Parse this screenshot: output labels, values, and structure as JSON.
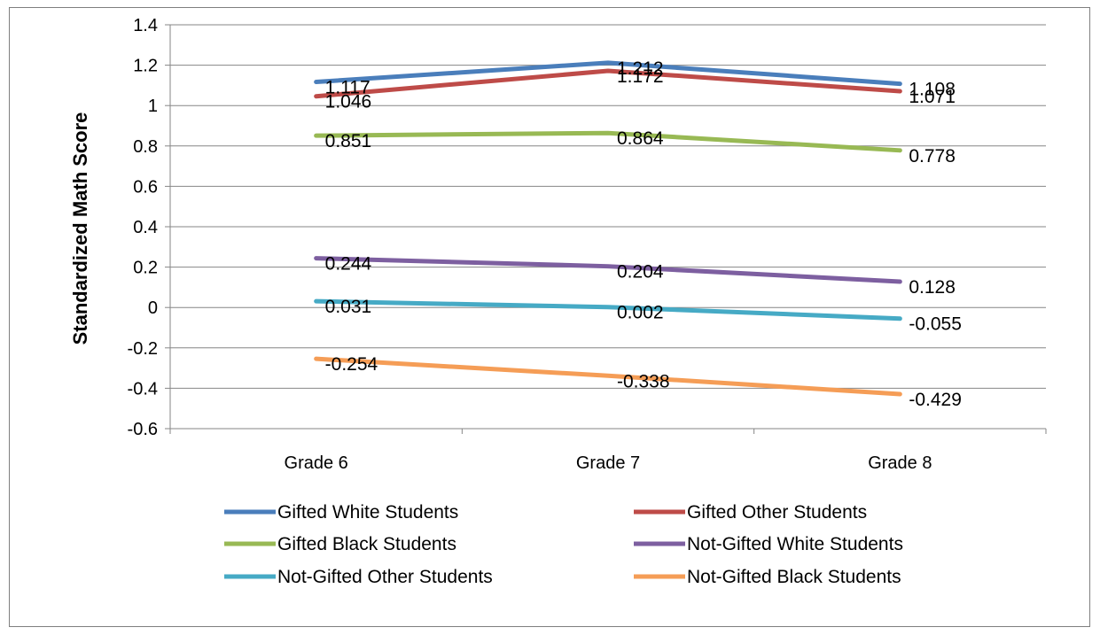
{
  "chart_data": {
    "type": "line",
    "title": "",
    "xlabel": "",
    "ylabel": "Standardized Math Score",
    "categories": [
      "Grade 6",
      "Grade 7",
      "Grade 8"
    ],
    "ylim": [
      -0.6,
      1.4
    ],
    "yticks": [
      "1.4",
      "1.2",
      "1",
      "0.8",
      "0.6",
      "0.4",
      "0.2",
      "0",
      "-0.2",
      "-0.4",
      "-0.6"
    ],
    "grid": "horizontal",
    "legend_position": "bottom",
    "series": [
      {
        "name": "Gifted White Students",
        "color": "#4a7ebb",
        "values": [
          1.117,
          1.212,
          1.108
        ],
        "labels": [
          "1.117",
          "1.212",
          "1.108"
        ]
      },
      {
        "name": "Gifted Other Students",
        "color": "#be4b48",
        "values": [
          1.046,
          1.172,
          1.071
        ],
        "labels": [
          "1.046",
          "1.172",
          "1.071"
        ]
      },
      {
        "name": "Gifted Black Students",
        "color": "#98b954",
        "values": [
          0.851,
          0.864,
          0.778
        ],
        "labels": [
          "0.851",
          "0.864",
          "0.778"
        ]
      },
      {
        "name": "Not-Gifted White Students",
        "color": "#7d5fa0",
        "values": [
          0.244,
          0.204,
          0.128
        ],
        "labels": [
          "0.244",
          "0.204",
          "0.128"
        ]
      },
      {
        "name": "Not-Gifted Other Students",
        "color": "#46aac5",
        "values": [
          0.031,
          0.002,
          -0.055
        ],
        "labels": [
          "0.031",
          "0.002",
          "-0.055"
        ]
      },
      {
        "name": "Not-Gifted Black Students",
        "color": "#f59d56",
        "values": [
          -0.254,
          -0.338,
          -0.429
        ],
        "labels": [
          "-0.254",
          "-0.338",
          "-0.429"
        ]
      }
    ]
  }
}
